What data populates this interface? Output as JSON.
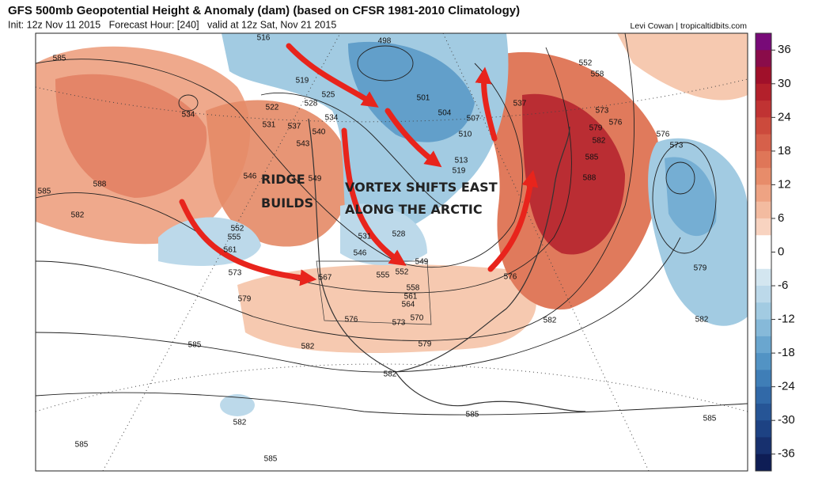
{
  "header": {
    "title": "GFS 500mb Geopotential Height & Anomaly (dam) (based on CFSR 1981-2010 Climatology)",
    "subtitle": "Init: 12z Nov 11 2015   Forecast Hour: [240]   valid at 12z Sat, Nov 21 2015",
    "credit": "Levi Cowan | tropicaltidbits.com"
  },
  "annotations": [
    [
      "RIDGE",
      "BUILDS"
    ],
    [
      "VORTEX SHIFTS EAST",
      "ALONG THE ARCTIC"
    ]
  ],
  "colorbar": {
    "ticks": [
      36,
      30,
      24,
      18,
      12,
      6,
      0,
      -6,
      -12,
      -18,
      -24,
      -30,
      -36
    ],
    "lim": [
      39,
      -39
    ],
    "colors": [
      "#780a78",
      "#8a0c4a",
      "#a0102a",
      "#b3202b",
      "#c03333",
      "#cc4a3c",
      "#d6604a",
      "#df7658",
      "#e78c6a",
      "#eea383",
      "#f3bba0",
      "#f8d3c0",
      "#ffffff",
      "#ffffff",
      "#d3e6f0",
      "#bcd9ea",
      "#a2cbe2",
      "#86b9d9",
      "#6aa6cf",
      "#5293c4",
      "#3f7eb7",
      "#3169a8",
      "#265596",
      "#1d4283",
      "#17306e",
      "#0e1d55"
    ]
  },
  "contour_labels": [
    "516",
    "498",
    "552",
    "558",
    "585",
    "519",
    "525",
    "528",
    "522",
    "534",
    "501",
    "537",
    "504",
    "507",
    "534",
    "531",
    "537",
    "540",
    "573",
    "579",
    "576",
    "582",
    "576",
    "573",
    "543",
    "510",
    "513",
    "519",
    "585",
    "546",
    "549",
    "588",
    "585",
    "588",
    "582",
    "552",
    "555",
    "531",
    "528",
    "561",
    "546",
    "549",
    "552",
    "555",
    "573",
    "567",
    "558",
    "576",
    "579",
    "561",
    "564",
    "579",
    "570",
    "576",
    "573",
    "582",
    "582",
    "585",
    "582",
    "579",
    "582",
    "582",
    "585",
    "585",
    "585",
    "585"
  ]
}
